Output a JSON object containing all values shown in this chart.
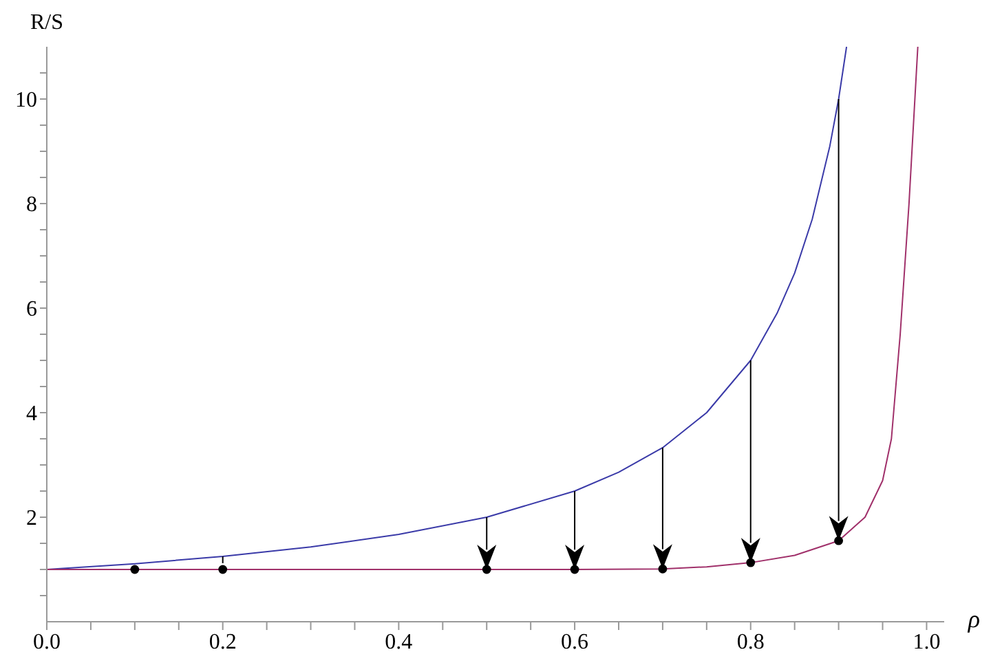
{
  "chart_data": {
    "type": "line",
    "xlabel": "ρ",
    "ylabel": "R/S",
    "xlim": [
      0,
      1.02
    ],
    "ylim": [
      0,
      11
    ],
    "xticks": [
      {
        "value": 0,
        "label": "0.0"
      },
      {
        "value": 0.05,
        "label": null
      },
      {
        "value": 0.1,
        "label": null
      },
      {
        "value": 0.15,
        "label": null
      },
      {
        "value": 0.2,
        "label": "0.2"
      },
      {
        "value": 0.25,
        "label": null
      },
      {
        "value": 0.3,
        "label": null
      },
      {
        "value": 0.35,
        "label": null
      },
      {
        "value": 0.4,
        "label": "0.4"
      },
      {
        "value": 0.45,
        "label": null
      },
      {
        "value": 0.5,
        "label": null
      },
      {
        "value": 0.55,
        "label": null
      },
      {
        "value": 0.6,
        "label": "0.6"
      },
      {
        "value": 0.65,
        "label": null
      },
      {
        "value": 0.7,
        "label": null
      },
      {
        "value": 0.75,
        "label": null
      },
      {
        "value": 0.8,
        "label": "0.8"
      },
      {
        "value": 0.85,
        "label": null
      },
      {
        "value": 0.9,
        "label": null
      },
      {
        "value": 0.95,
        "label": null
      },
      {
        "value": 1,
        "label": "1.0"
      }
    ],
    "yticks": [
      {
        "value": 0.5,
        "label": null
      },
      {
        "value": 1,
        "label": null
      },
      {
        "value": 1.5,
        "label": null
      },
      2,
      {
        "value": 2.5,
        "label": null
      },
      {
        "value": 3,
        "label": null
      },
      {
        "value": 3.5,
        "label": null
      },
      4,
      {
        "value": 4.5,
        "label": null
      },
      {
        "value": 5,
        "label": null
      },
      {
        "value": 5.5,
        "label": null
      },
      6,
      {
        "value": 6.5,
        "label": null
      },
      {
        "value": 7,
        "label": null
      },
      {
        "value": 7.5,
        "label": null
      },
      8,
      {
        "value": 8.5,
        "label": null
      },
      {
        "value": 9,
        "label": null
      },
      {
        "value": 9.5,
        "label": null
      },
      10,
      {
        "value": 10.5,
        "label": null
      }
    ],
    "marker": "none",
    "line_style": "solid",
    "series": [
      {
        "color": "#3a3aa8",
        "x": [
          0,
          0.1,
          0.2,
          0.3,
          0.4,
          0.5,
          0.6,
          0.65,
          0.7,
          0.75,
          0.8,
          0.83,
          0.85,
          0.87,
          0.89,
          0.9,
          0.909
        ],
        "values": [
          1,
          1.11,
          1.25,
          1.43,
          1.67,
          2,
          2.5,
          2.86,
          3.33,
          4,
          5,
          5.9,
          6.67,
          7.7,
          9.1,
          10,
          11
        ]
      },
      {
        "type": "line",
        "color": "#a0306a",
        "x": [
          0,
          0.2,
          0.4,
          0.5,
          0.6,
          0.7,
          0.75,
          0.8,
          0.85,
          0.9,
          0.93,
          0.95,
          0.96,
          0.97,
          0.98,
          0.99
        ],
        "values": [
          1,
          1,
          1,
          1,
          1,
          1.01,
          1.05,
          1.13,
          1.27,
          1.55,
          2,
          2.7,
          3.5,
          5.5,
          8,
          11
        ]
      },
      {
        "type": "scatter",
        "color": "#000000",
        "marker": "circle",
        "x": [
          0.1,
          0.2,
          0.5,
          0.6,
          0.7,
          0.8,
          0.9
        ],
        "values": [
          1,
          1,
          1,
          1,
          1.01,
          1.13,
          1.55
        ]
      }
    ]
  }
}
